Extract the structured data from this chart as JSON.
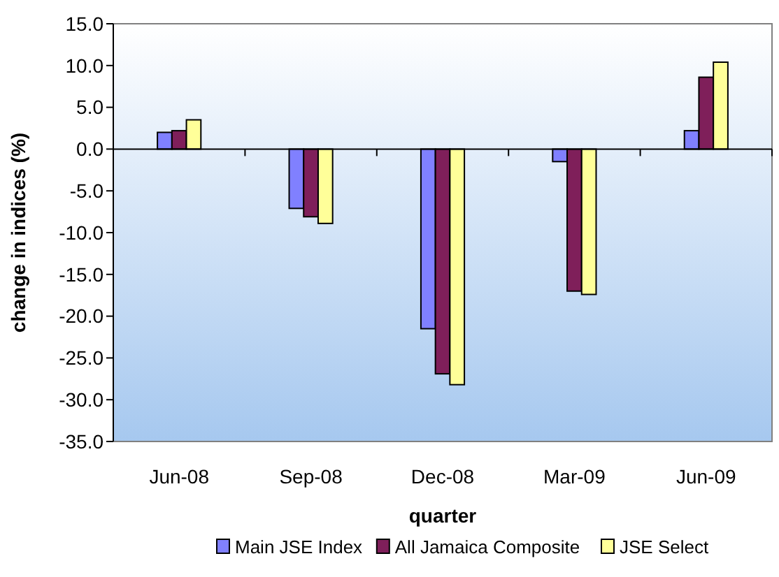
{
  "chart_data": {
    "type": "bar",
    "xlabel": "quarter",
    "ylabel": "change in indices (%)",
    "categories": [
      "Jun-08",
      "Sep-08",
      "Dec-08",
      "Mar-09",
      "Jun-09"
    ],
    "series": [
      {
        "name": "Main JSE Index",
        "color": "#8080ff",
        "values": [
          2.0,
          -7.1,
          -21.5,
          -1.5,
          2.2
        ]
      },
      {
        "name": "All Jamaica Composite",
        "color": "#7f1f5a",
        "values": [
          2.2,
          -8.1,
          -26.9,
          -17.0,
          8.6
        ]
      },
      {
        "name": "JSE Select",
        "color": "#ffff99",
        "values": [
          3.5,
          -8.9,
          -28.2,
          -17.4,
          10.4
        ]
      }
    ],
    "ylim": [
      -35,
      15
    ],
    "yticks": [
      {
        "value": 15,
        "label": "15.0"
      },
      {
        "value": 10,
        "label": "10.0"
      },
      {
        "value": 5,
        "label": "5.0"
      },
      {
        "value": 0,
        "label": "0.0"
      },
      {
        "value": -5,
        "label": "-5.0"
      },
      {
        "value": -10,
        "label": "-10.0"
      },
      {
        "value": -15,
        "label": "-15.0"
      },
      {
        "value": -20,
        "label": "-20.0"
      },
      {
        "value": -25,
        "label": "-25.0"
      },
      {
        "value": -30,
        "label": "-30.0"
      },
      {
        "value": -35,
        "label": "-35.0"
      }
    ],
    "legend": "bottom"
  }
}
